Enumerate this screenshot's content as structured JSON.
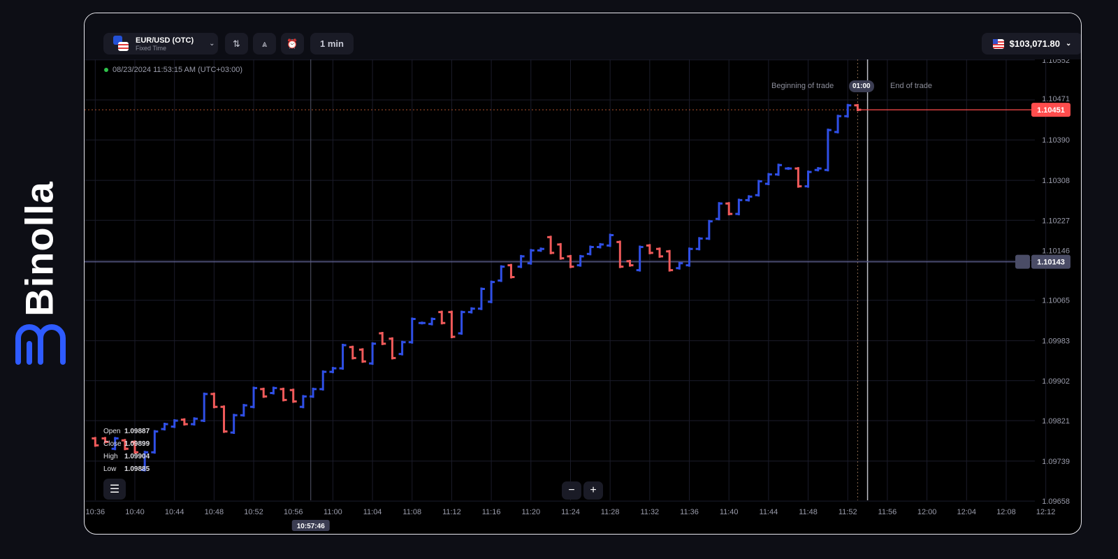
{
  "brand": {
    "name": "Binolla",
    "accent": "#2e5bff"
  },
  "toolbar": {
    "asset": {
      "name": "EUR/USD (OTC)",
      "mode": "Fixed Time"
    },
    "tools": [
      "chart-type-icon",
      "drawing-tools-icon",
      "add-alert-icon"
    ],
    "timeframe": "1 min",
    "balance": "$103,071.80"
  },
  "timestamp": "08/23/2024 11:53:15 AM (UTC+03:00)",
  "trade": {
    "begin_label": "Beginning of trade",
    "timer": "01:00",
    "end_label": "End of trade"
  },
  "ohlc": {
    "open_label": "Open",
    "open": "1.09887",
    "close_label": "Close",
    "close": "1.09899",
    "high_label": "High",
    "high": "1.09904",
    "low_label": "Low",
    "low": "1.09885"
  },
  "zoom": {
    "minus": "−",
    "plus": "+"
  },
  "chart_data": {
    "type": "ohlc-bar",
    "colors": {
      "up": "#2f4fe6",
      "down": "#f05a5a",
      "current": "#ff4d4d",
      "level": "#5a5c8a"
    },
    "current_price": "1.10451",
    "level_price": "1.10143",
    "cursor_time": "10:57:46",
    "y_ticks": [
      "1.10552",
      "1.10471",
      "1.10390",
      "1.10308",
      "1.10227",
      "1.10146",
      "1.10065",
      "1.09983",
      "1.09902",
      "1.09821",
      "1.09739",
      "1.09658"
    ],
    "x_ticks": [
      "10:36",
      "10:40",
      "10:44",
      "10:48",
      "10:52",
      "10:56",
      "11:00",
      "11:04",
      "11:08",
      "11:12",
      "11:16",
      "11:20",
      "11:24",
      "11:28",
      "11:32",
      "11:36",
      "11:40",
      "11:44",
      "11:48",
      "11:52",
      "11:56",
      "12:00",
      "12:04",
      "12:08",
      "12:12"
    ],
    "candles": [
      [
        "10:36",
        1.09785,
        1.09771
      ],
      [
        "10:37",
        1.09785,
        1.09778
      ],
      [
        "10:38",
        1.09764,
        1.09785
      ],
      [
        "10:39",
        1.09781,
        1.09764
      ],
      [
        "10:40",
        1.09778,
        1.09757
      ],
      [
        "10:41",
        1.09721,
        1.09757
      ],
      [
        "10:42",
        1.09757,
        1.09799
      ],
      [
        "10:43",
        1.09804,
        1.09814
      ],
      [
        "10:44",
        1.09809,
        1.09821
      ],
      [
        "10:45",
        1.09823,
        1.09814
      ],
      [
        "10:46",
        1.09814,
        1.09825
      ],
      [
        "10:47",
        1.09821,
        1.09875
      ],
      [
        "10:48",
        1.09875,
        1.09849
      ],
      [
        "10:49",
        1.09849,
        1.09799
      ],
      [
        "10:50",
        1.09797,
        1.09832
      ],
      [
        "10:51",
        1.09832,
        1.09852
      ],
      [
        "10:52",
        1.09849,
        1.09887
      ],
      [
        "10:53",
        1.09885,
        1.0987
      ],
      [
        "10:54",
        1.09877,
        1.09887
      ],
      [
        "10:55",
        1.09885,
        1.09863
      ],
      [
        "10:56",
        1.09883,
        1.0986
      ],
      [
        "10:57",
        1.09849,
        1.0987
      ],
      [
        "10:58",
        1.0987,
        1.09885
      ],
      [
        "10:59",
        1.09885,
        1.0992
      ],
      [
        "11:00",
        1.0992,
        1.09927
      ],
      [
        "11:01",
        1.09927,
        1.09974
      ],
      [
        "11:02",
        1.0997,
        1.09948
      ],
      [
        "11:03",
        1.09965,
        1.09941
      ],
      [
        "11:04",
        1.09937,
        1.09977
      ],
      [
        "11:05",
        1.09998,
        1.09977
      ],
      [
        "11:06",
        1.09987,
        1.09948
      ],
      [
        "11:07",
        1.09956,
        1.0998
      ],
      [
        "11:08",
        1.0998,
        1.10027
      ],
      [
        "11:09",
        1.10019,
        1.10019
      ],
      [
        "11:10",
        1.10017,
        1.10027
      ],
      [
        "11:11",
        1.10041,
        1.10019
      ],
      [
        "11:12",
        1.10041,
        1.09991
      ],
      [
        "11:13",
        1.09998,
        1.10041
      ],
      [
        "11:14",
        1.10041,
        1.10048
      ],
      [
        "11:15",
        1.10048,
        1.10088
      ],
      [
        "11:16",
        1.10062,
        1.10102
      ],
      [
        "11:17",
        1.10105,
        1.10133
      ],
      [
        "11:18",
        1.10136,
        1.10112
      ],
      [
        "11:19",
        1.10133,
        1.10154
      ],
      [
        "11:20",
        1.1014,
        1.10166
      ],
      [
        "11:21",
        1.10166,
        1.10169
      ],
      [
        "11:22",
        1.10193,
        1.10161
      ],
      [
        "11:23",
        1.10178,
        1.1015
      ],
      [
        "11:24",
        1.10154,
        1.10133
      ],
      [
        "11:25",
        1.10136,
        1.10154
      ],
      [
        "11:26",
        1.10159,
        1.10173
      ],
      [
        "11:27",
        1.10173,
        1.10178
      ],
      [
        "11:28",
        1.10176,
        1.10197
      ],
      [
        "11:29",
        1.10183,
        1.10133
      ],
      [
        "11:30",
        1.10144,
        1.10136
      ],
      [
        "11:31",
        1.10126,
        1.10173
      ],
      [
        "11:32",
        1.10176,
        1.10161
      ],
      [
        "11:33",
        1.10169,
        1.10154
      ],
      [
        "11:34",
        1.10164,
        1.10126
      ],
      [
        "11:35",
        1.1013,
        1.1014
      ],
      [
        "11:36",
        1.10136,
        1.10169
      ],
      [
        "11:37",
        1.10169,
        1.1019
      ],
      [
        "11:38",
        1.1019,
        1.10225
      ],
      [
        "11:39",
        1.1023,
        1.10261
      ],
      [
        "11:40",
        1.10261,
        1.1024
      ],
      [
        "11:41",
        1.1024,
        1.10268
      ],
      [
        "11:42",
        1.10268,
        1.10275
      ],
      [
        "11:43",
        1.10278,
        1.10306
      ],
      [
        "11:44",
        1.10301,
        1.1032
      ],
      [
        "11:45",
        1.1032,
        1.10339
      ],
      [
        "11:46",
        1.10332,
        1.10332
      ],
      [
        "11:47",
        1.10332,
        1.10296
      ],
      [
        "11:48",
        1.10296,
        1.10325
      ],
      [
        "11:49",
        1.10329,
        1.10332
      ],
      [
        "11:50",
        1.10329,
        1.1041
      ],
      [
        "11:51",
        1.10406,
        1.10438
      ],
      [
        "11:52",
        1.10438,
        1.1046
      ],
      [
        "11:53",
        1.1046,
        1.10451
      ]
    ]
  }
}
